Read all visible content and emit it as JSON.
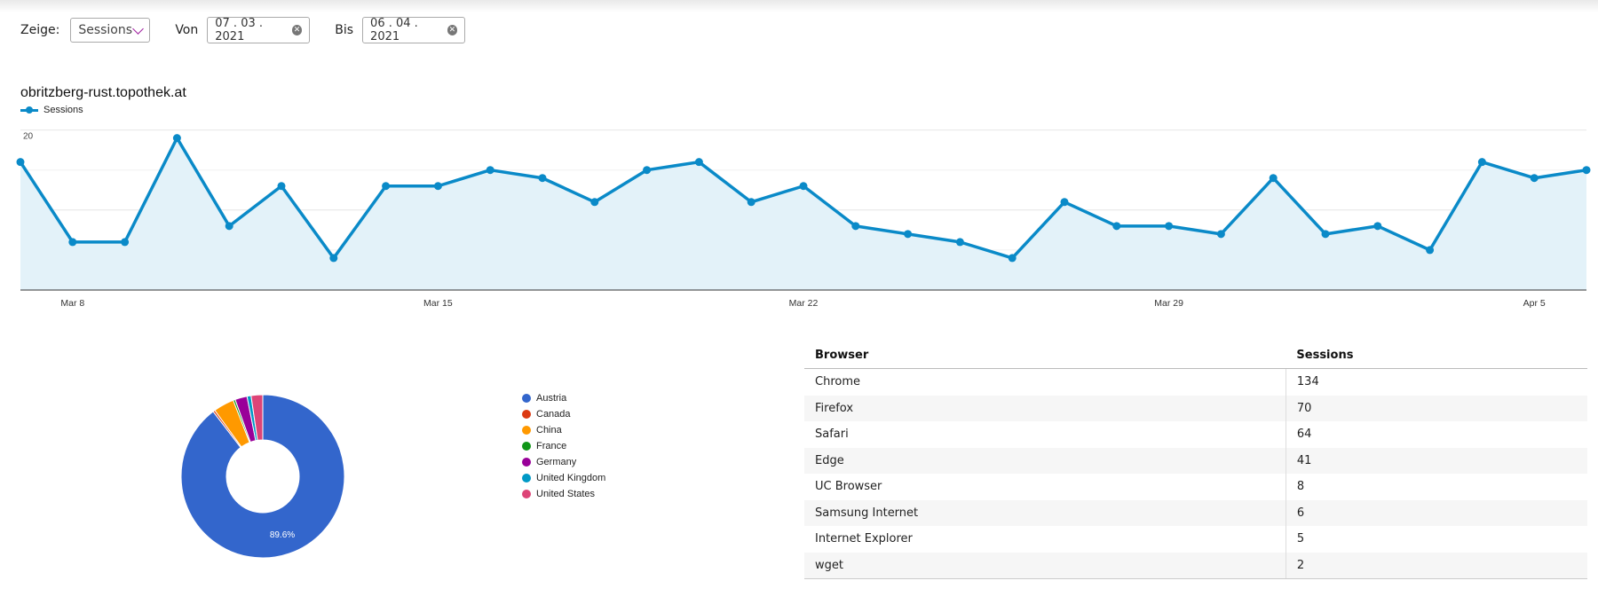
{
  "filters": {
    "show_label": "Zeige:",
    "metric_value": "Sessions",
    "from_label": "Von",
    "from_value": "07 . 03 . 2021",
    "to_label": "Bis",
    "to_value": "06 . 04 . 2021"
  },
  "line_chart": {
    "title": "obritzberg-rust.topothek.at",
    "series_name": "Sessions",
    "accent": "#0a8ac8",
    "fill": "#e3f2f9"
  },
  "pie_chart": {
    "percent_label": "89.6%"
  },
  "browser_table": {
    "headers": [
      "Browser",
      "Sessions"
    ],
    "rows": [
      [
        "Chrome",
        "134"
      ],
      [
        "Firefox",
        "70"
      ],
      [
        "Safari",
        "64"
      ],
      [
        "Edge",
        "41"
      ],
      [
        "UC Browser",
        "8"
      ],
      [
        "Samsung Internet",
        "6"
      ],
      [
        "Internet Explorer",
        "5"
      ],
      [
        "wget",
        "2"
      ]
    ]
  },
  "chart_data": [
    {
      "type": "area",
      "title": "obritzberg-rust.topothek.at",
      "legend": [
        "Sessions"
      ],
      "x": [
        "2021-03-07",
        "2021-03-08",
        "2021-03-09",
        "2021-03-10",
        "2021-03-11",
        "2021-03-12",
        "2021-03-13",
        "2021-03-14",
        "2021-03-15",
        "2021-03-16",
        "2021-03-17",
        "2021-03-18",
        "2021-03-19",
        "2021-03-20",
        "2021-03-21",
        "2021-03-22",
        "2021-03-23",
        "2021-03-24",
        "2021-03-25",
        "2021-03-26",
        "2021-03-27",
        "2021-03-28",
        "2021-03-29",
        "2021-03-30",
        "2021-03-31",
        "2021-04-01",
        "2021-04-02",
        "2021-04-03",
        "2021-04-04",
        "2021-04-05",
        "2021-04-06"
      ],
      "x_tick_labels": [
        "Mar 8",
        "Mar 15",
        "Mar 22",
        "Mar 29",
        "Apr 5"
      ],
      "y_ticks": [
        10,
        20
      ],
      "ylim": [
        0,
        20.4
      ],
      "series": [
        {
          "name": "Sessions",
          "values": [
            16,
            6,
            6,
            19,
            8,
            13,
            4,
            13,
            13,
            15,
            14,
            11,
            15,
            16,
            11,
            13,
            8,
            7,
            6,
            4,
            11,
            8,
            8,
            7,
            14,
            7,
            8,
            5,
            16,
            14,
            15
          ]
        }
      ],
      "grid": true,
      "legend_position": "top-left"
    },
    {
      "type": "pie",
      "donut": true,
      "labels": [
        "Austria",
        "Canada",
        "China",
        "France",
        "Germany",
        "United Kingdom",
        "United States"
      ],
      "values": [
        89.6,
        0.4,
        4.1,
        0.4,
        2.4,
        0.8,
        2.3
      ],
      "colors": [
        "#3366cc",
        "#dc3912",
        "#ff9900",
        "#109618",
        "#990099",
        "#0099c6",
        "#dd4477"
      ],
      "slice_label": "89.6%",
      "legend_position": "right"
    }
  ]
}
